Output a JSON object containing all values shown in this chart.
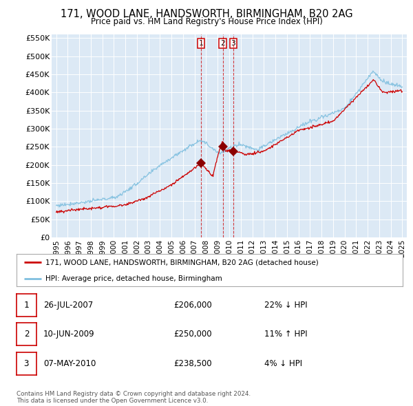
{
  "title": "171, WOOD LANE, HANDSWORTH, BIRMINGHAM, B20 2AG",
  "subtitle": "Price paid vs. HM Land Registry's House Price Index (HPI)",
  "background_color": "#ffffff",
  "plot_bg_color": "#dce9f5",
  "hpi_color": "#7fbfdf",
  "price_color": "#cc0000",
  "ylim": [
    0,
    560000
  ],
  "yticks": [
    0,
    50000,
    100000,
    150000,
    200000,
    250000,
    300000,
    350000,
    400000,
    450000,
    500000,
    550000
  ],
  "ytick_labels": [
    "£0",
    "£50K",
    "£100K",
    "£150K",
    "£200K",
    "£250K",
    "£300K",
    "£350K",
    "£400K",
    "£450K",
    "£500K",
    "£550K"
  ],
  "xlim_start": 1994.6,
  "xlim_end": 2025.4,
  "transactions": [
    {
      "num": 1,
      "date": "26-JUL-2007",
      "year": 2007.56,
      "price": 206000,
      "hpi_pct": "22% ↓ HPI"
    },
    {
      "num": 2,
      "date": "10-JUN-2009",
      "year": 2009.44,
      "price": 250000,
      "hpi_pct": "11% ↑ HPI"
    },
    {
      "num": 3,
      "date": "07-MAY-2010",
      "year": 2010.36,
      "price": 238500,
      "hpi_pct": "4% ↓ HPI"
    }
  ],
  "legend_line1": "171, WOOD LANE, HANDSWORTH, BIRMINGHAM, B20 2AG (detached house)",
  "legend_line2": "HPI: Average price, detached house, Birmingham",
  "footer": "Contains HM Land Registry data © Crown copyright and database right 2024.\nThis data is licensed under the Open Government Licence v3.0.",
  "xticks": [
    1995,
    1996,
    1997,
    1998,
    1999,
    2000,
    2001,
    2002,
    2003,
    2004,
    2005,
    2006,
    2007,
    2008,
    2009,
    2010,
    2011,
    2012,
    2013,
    2014,
    2015,
    2016,
    2017,
    2018,
    2019,
    2020,
    2021,
    2022,
    2023,
    2024,
    2025
  ]
}
